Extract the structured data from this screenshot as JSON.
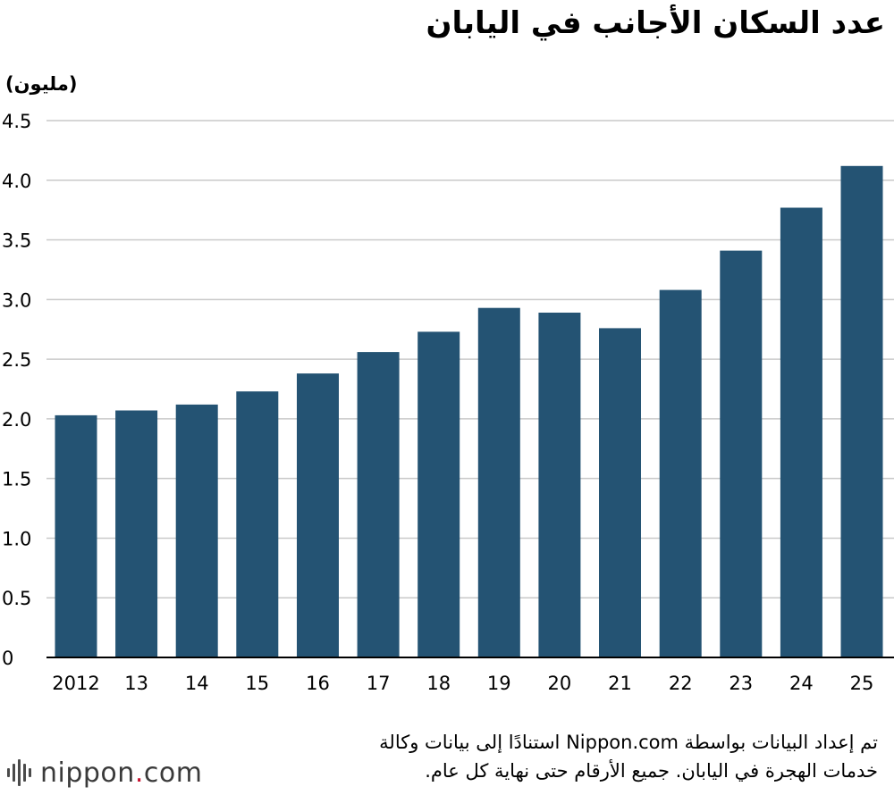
{
  "chart_data": {
    "type": "bar",
    "title": "عدد السكان الأجانب في اليابان",
    "ylabel": "(مليون)",
    "xlabel": "",
    "categories": [
      "2012",
      "13",
      "14",
      "15",
      "16",
      "17",
      "18",
      "19",
      "20",
      "21",
      "22",
      "23",
      "24",
      "25"
    ],
    "values": [
      2.03,
      2.07,
      2.12,
      2.23,
      2.38,
      2.56,
      2.73,
      2.93,
      2.89,
      2.76,
      3.08,
      3.41,
      3.77,
      4.12
    ],
    "ylim": [
      0,
      4.5
    ],
    "yticks": [
      "0",
      "0.5",
      "1.0",
      "1.5",
      "2.0",
      "2.5",
      "3.0",
      "3.5",
      "4.0",
      "4.5"
    ],
    "grid": true,
    "legend": "none",
    "colors": {
      "bar": "#245373",
      "grid": "#c9c9c9",
      "axis": "#000000"
    }
  },
  "note": "تم إعداد البيانات بواسطة Nippon.com استنادًا إلى بيانات وكالة خدمات الهجرة في اليابان. جميع الأرقام حتى نهاية كل عام.",
  "logo": {
    "brand": "nippon",
    "dot": ".",
    "suffix": "com",
    "accent": "#c8102e"
  }
}
